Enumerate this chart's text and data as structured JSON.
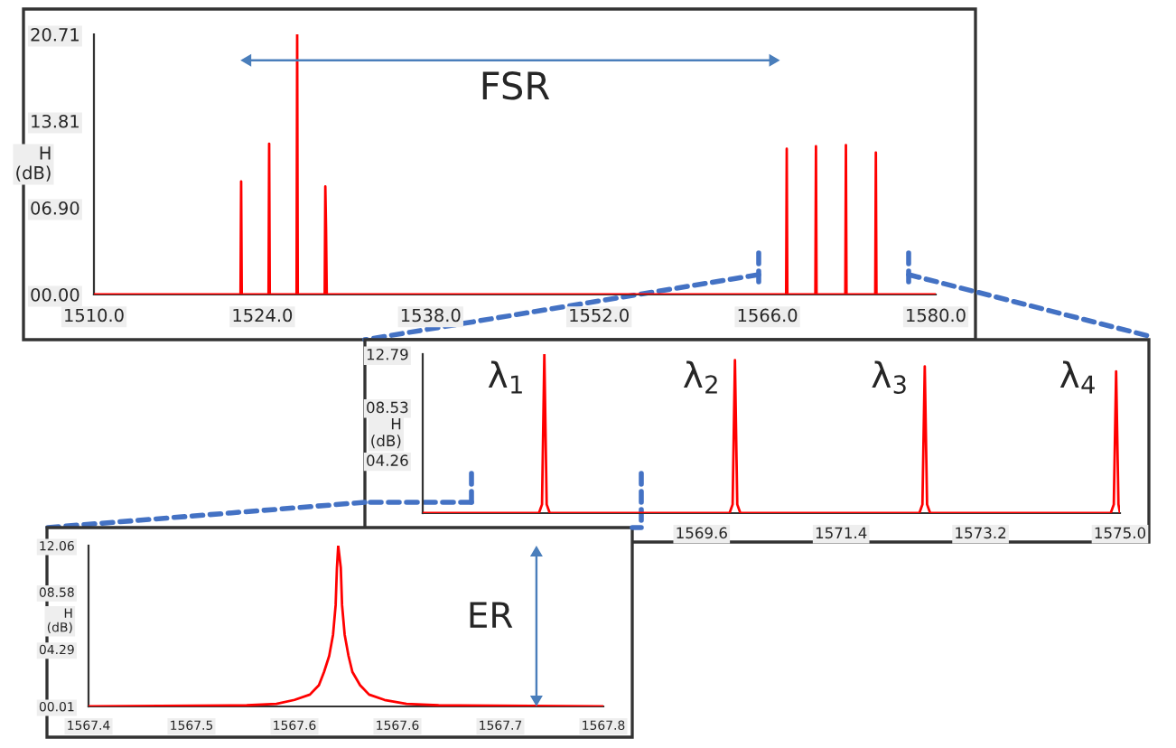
{
  "chart_data": [
    {
      "type": "line",
      "ylabel": "H\n(dB)",
      "xlim": [
        1510.0,
        1580.0
      ],
      "ylim": [
        0,
        20.71
      ],
      "xticks": [
        {
          "value": 1510,
          "label": "1510.0"
        },
        {
          "value": 1524,
          "label": "1524.0"
        },
        {
          "value": 1538,
          "label": "1538.0"
        },
        {
          "value": 1552,
          "label": "1552.0"
        },
        {
          "value": 1566,
          "label": "1566.0"
        },
        {
          "value": 1580,
          "label": "1580.0"
        }
      ],
      "yticks": [
        {
          "value": 0,
          "label": "00.00"
        },
        {
          "value": 6.9,
          "label": "06.90"
        },
        {
          "value": 13.81,
          "label": "13.81"
        },
        {
          "value": 20.71,
          "label": "20.71"
        }
      ],
      "annotations": [
        "FSR"
      ],
      "series": [
        {
          "color": "#ff0000",
          "x": [
            1510.0,
            1522.19,
            1522.24,
            1522.29,
            1524.52,
            1524.57,
            1524.62,
            1526.85,
            1526.9,
            1526.95,
            1529.19,
            1529.24,
            1529.3,
            1529.36,
            1567.56,
            1567.61,
            1567.66,
            1569.99,
            1570.04,
            1570.09,
            1572.48,
            1572.53,
            1572.58,
            1574.97,
            1575.02,
            1575.07,
            1580.0
          ],
          "values": [
            0,
            0,
            9.0,
            0,
            0,
            12.0,
            0,
            0,
            20.7,
            0,
            0,
            8.6,
            5.2,
            0,
            0,
            11.6,
            0,
            0,
            11.8,
            0,
            0,
            11.9,
            0,
            0,
            11.3,
            0,
            0
          ]
        }
      ]
    },
    {
      "type": "line",
      "ylabel": "H\n(dB)",
      "xlim": [
        1566.0,
        1575.0
      ],
      "ylim": [
        0,
        12.79
      ],
      "xticks": [
        1569.6,
        1571.4,
        1573.2,
        {
          "value": 1575.0,
          "label": "1575.0"
        }
      ],
      "yticks": [
        {
          "value": 4.26,
          "label": "04.26"
        },
        {
          "value": 8.53,
          "label": "08.53"
        },
        {
          "value": 12.79,
          "label": "12.79"
        }
      ],
      "annotations": [
        "λ$_{1}$",
        "λ$_{2}$",
        "λ$_{3}$",
        "λ$_{4}$"
      ],
      "series": [
        {
          "color": "#ff0000",
          "x": [
            1566.0,
            1567.5,
            1567.54,
            1567.57,
            1567.6,
            1567.64,
            1569.96,
            1570.0,
            1570.03,
            1570.06,
            1570.1,
            1572.41,
            1572.45,
            1572.48,
            1572.51,
            1572.55,
            1574.88,
            1574.92,
            1574.95,
            1574.98,
            1575.0
          ],
          "values": [
            0,
            0,
            0.7,
            12.79,
            0.7,
            0,
            0,
            0.7,
            12.3,
            0.7,
            0,
            0,
            0.7,
            11.8,
            0.7,
            0,
            0,
            0.7,
            11.4,
            0.7,
            0
          ]
        }
      ]
    },
    {
      "type": "line",
      "ylabel": "H\n(dB)",
      "xlim": [
        1567.4,
        1567.8
      ],
      "ylim": [
        0.01,
        12.06
      ],
      "xticks": [
        {
          "value": 1567.4,
          "label": "1567.4"
        },
        {
          "value": 1567.48,
          "label": "1567.5"
        },
        {
          "value": 1567.56,
          "label": "1567.6"
        },
        {
          "value": 1567.64,
          "label": "1567.6"
        },
        {
          "value": 1567.72,
          "label": "1567.7"
        },
        {
          "value": 1567.8,
          "label": "1567.8"
        }
      ],
      "yticks": [
        {
          "value": 0.01,
          "label": "00.01"
        },
        {
          "value": 4.29,
          "label": "04.29"
        },
        {
          "value": 8.58,
          "label": "08.58"
        },
        {
          "value": 12.06,
          "label": "12.06"
        }
      ],
      "annotations": [
        "ER"
      ],
      "series": [
        {
          "color": "#ff0000",
          "x": [
            1567.4,
            1567.523,
            1567.546,
            1567.56,
            1567.572,
            1567.579,
            1567.583,
            1567.587,
            1567.59,
            1567.592,
            1567.593,
            1567.594,
            1567.596,
            1567.597,
            1567.599,
            1567.602,
            1567.605,
            1567.611,
            1567.618,
            1567.63,
            1567.647,
            1567.672,
            1567.8
          ],
          "values": [
            0.01,
            0.1,
            0.2,
            0.5,
            0.9,
            1.6,
            2.6,
            3.8,
            5.4,
            7.6,
            10.4,
            12.06,
            10.4,
            7.6,
            5.4,
            3.8,
            2.6,
            1.6,
            0.9,
            0.5,
            0.2,
            0.1,
            0.01
          ]
        }
      ]
    }
  ]
}
